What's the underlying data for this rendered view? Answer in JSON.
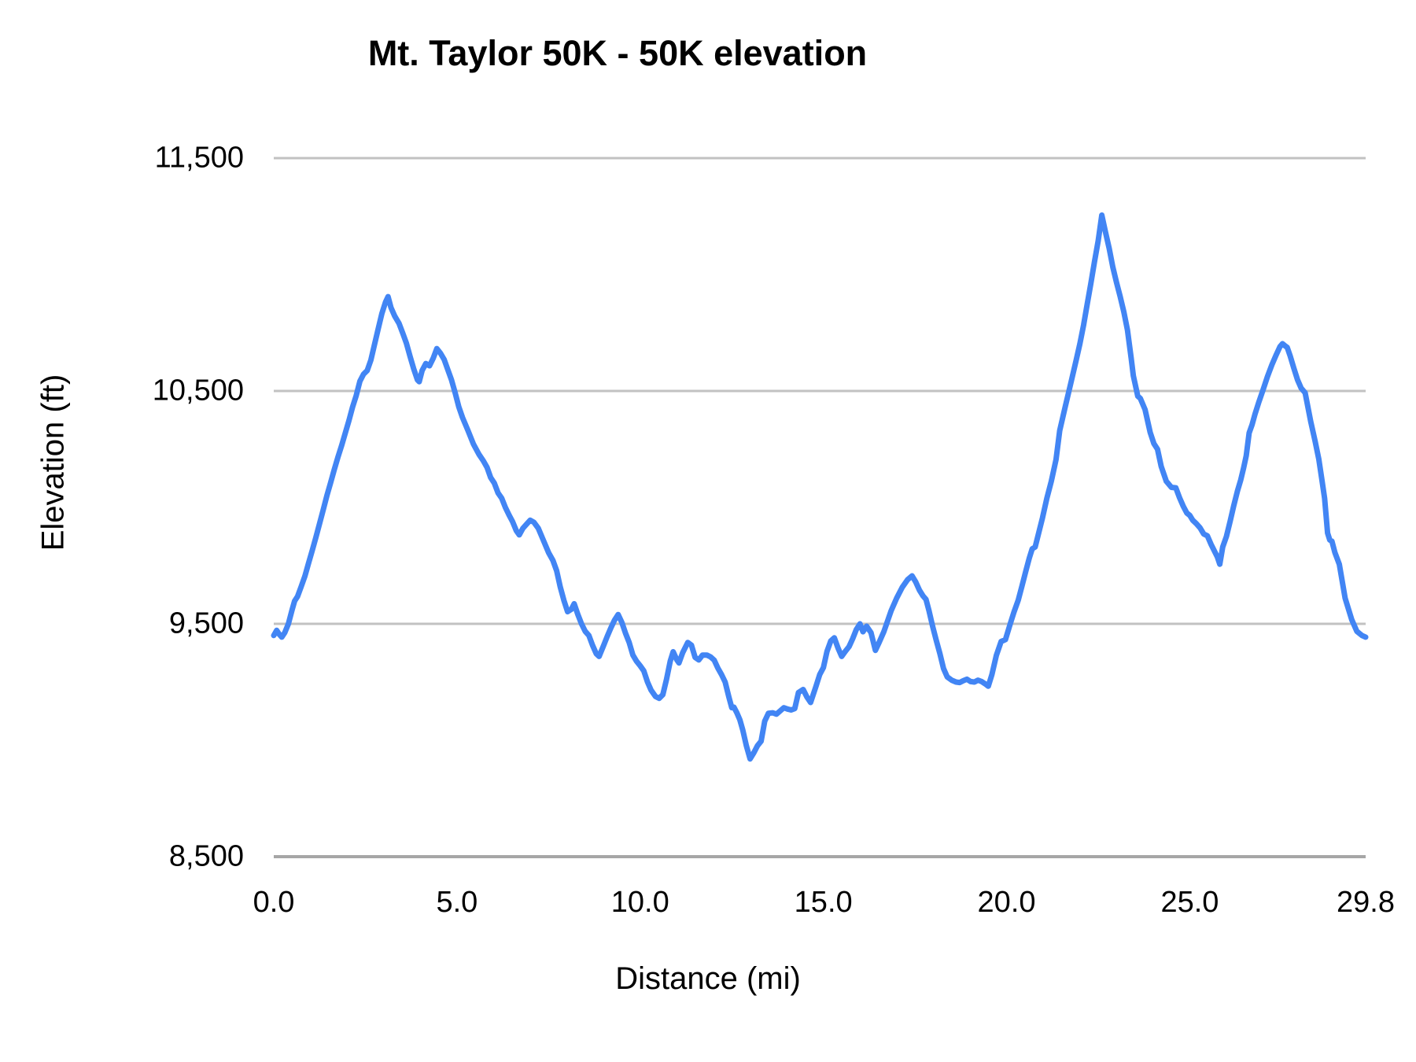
{
  "title": "Mt. Taylor 50K - 50K elevation",
  "colors": {
    "line": "#4285F4",
    "gridline": "#c2c2c2",
    "axis_baseline": "#a6a6a6",
    "text": "#000000",
    "background": "#ffffff"
  },
  "chart_data": {
    "type": "line",
    "title": "Mt. Taylor 50K - 50K elevation",
    "xlabel": "Distance (mi)",
    "ylabel": "Elevation (ft)",
    "xlim": [
      0,
      29.8
    ],
    "ylim": [
      8500,
      11500
    ],
    "grid": "horizontal-only",
    "legend": "none",
    "line_color": "#4285F4",
    "x_ticks": [
      {
        "value": 0.0,
        "label": "0.0"
      },
      {
        "value": 5.0,
        "label": "5.0"
      },
      {
        "value": 10.0,
        "label": "10.0"
      },
      {
        "value": 15.0,
        "label": "15.0"
      },
      {
        "value": 20.0,
        "label": "20.0"
      },
      {
        "value": 25.0,
        "label": "25.0"
      },
      {
        "value": 29.8,
        "label": "29.8"
      }
    ],
    "y_ticks": [
      {
        "value": 8500,
        "label": "8,500"
      },
      {
        "value": 9500,
        "label": "9,500"
      },
      {
        "value": 10500,
        "label": "10,500"
      },
      {
        "value": 11500,
        "label": "11,500"
      }
    ],
    "series": [
      {
        "name": "elevation",
        "points": [
          [
            0.0,
            9450
          ],
          [
            0.08,
            9472
          ],
          [
            0.15,
            9455
          ],
          [
            0.22,
            9443
          ],
          [
            0.3,
            9462
          ],
          [
            0.4,
            9500
          ],
          [
            0.5,
            9560
          ],
          [
            0.57,
            9598
          ],
          [
            0.65,
            9618
          ],
          [
            0.75,
            9660
          ],
          [
            0.85,
            9705
          ],
          [
            0.95,
            9760
          ],
          [
            1.05,
            9815
          ],
          [
            1.15,
            9872
          ],
          [
            1.25,
            9930
          ],
          [
            1.35,
            9990
          ],
          [
            1.45,
            10050
          ],
          [
            1.55,
            10105
          ],
          [
            1.65,
            10162
          ],
          [
            1.75,
            10215
          ],
          [
            1.85,
            10265
          ],
          [
            1.95,
            10318
          ],
          [
            2.05,
            10372
          ],
          [
            2.15,
            10430
          ],
          [
            2.25,
            10480
          ],
          [
            2.35,
            10542
          ],
          [
            2.45,
            10572
          ],
          [
            2.55,
            10588
          ],
          [
            2.65,
            10632
          ],
          [
            2.75,
            10700
          ],
          [
            2.85,
            10766
          ],
          [
            2.95,
            10832
          ],
          [
            3.05,
            10882
          ],
          [
            3.12,
            10905
          ],
          [
            3.2,
            10858
          ],
          [
            3.3,
            10822
          ],
          [
            3.42,
            10790
          ],
          [
            3.52,
            10748
          ],
          [
            3.62,
            10705
          ],
          [
            3.72,
            10648
          ],
          [
            3.82,
            10595
          ],
          [
            3.92,
            10548
          ],
          [
            3.97,
            10540
          ],
          [
            4.05,
            10588
          ],
          [
            4.15,
            10618
          ],
          [
            4.25,
            10608
          ],
          [
            4.35,
            10640
          ],
          [
            4.45,
            10682
          ],
          [
            4.55,
            10662
          ],
          [
            4.65,
            10635
          ],
          [
            4.75,
            10592
          ],
          [
            4.85,
            10548
          ],
          [
            4.95,
            10492
          ],
          [
            5.05,
            10432
          ],
          [
            5.15,
            10386
          ],
          [
            5.3,
            10330
          ],
          [
            5.45,
            10272
          ],
          [
            5.6,
            10228
          ],
          [
            5.72,
            10200
          ],
          [
            5.82,
            10172
          ],
          [
            5.92,
            10128
          ],
          [
            6.02,
            10104
          ],
          [
            6.12,
            10062
          ],
          [
            6.22,
            10040
          ],
          [
            6.32,
            10000
          ],
          [
            6.42,
            9968
          ],
          [
            6.52,
            9938
          ],
          [
            6.62,
            9900
          ],
          [
            6.7,
            9882
          ],
          [
            6.8,
            9910
          ],
          [
            6.9,
            9928
          ],
          [
            7.0,
            9945
          ],
          [
            7.1,
            9936
          ],
          [
            7.22,
            9910
          ],
          [
            7.35,
            9862
          ],
          [
            7.5,
            9806
          ],
          [
            7.62,
            9772
          ],
          [
            7.72,
            9728
          ],
          [
            7.82,
            9658
          ],
          [
            7.92,
            9600
          ],
          [
            8.02,
            9552
          ],
          [
            8.12,
            9562
          ],
          [
            8.2,
            9586
          ],
          [
            8.3,
            9540
          ],
          [
            8.4,
            9500
          ],
          [
            8.5,
            9468
          ],
          [
            8.6,
            9450
          ],
          [
            8.7,
            9408
          ],
          [
            8.8,
            9372
          ],
          [
            8.88,
            9360
          ],
          [
            9.0,
            9406
          ],
          [
            9.1,
            9446
          ],
          [
            9.2,
            9482
          ],
          [
            9.3,
            9516
          ],
          [
            9.4,
            9540
          ],
          [
            9.5,
            9506
          ],
          [
            9.6,
            9460
          ],
          [
            9.7,
            9420
          ],
          [
            9.8,
            9366
          ],
          [
            9.9,
            9340
          ],
          [
            10.0,
            9320
          ],
          [
            10.1,
            9298
          ],
          [
            10.2,
            9250
          ],
          [
            10.3,
            9215
          ],
          [
            10.42,
            9188
          ],
          [
            10.52,
            9180
          ],
          [
            10.62,
            9196
          ],
          [
            10.72,
            9262
          ],
          [
            10.82,
            9340
          ],
          [
            10.9,
            9380
          ],
          [
            11.0,
            9346
          ],
          [
            11.06,
            9332
          ],
          [
            11.16,
            9376
          ],
          [
            11.3,
            9420
          ],
          [
            11.4,
            9408
          ],
          [
            11.5,
            9356
          ],
          [
            11.6,
            9345
          ],
          [
            11.7,
            9366
          ],
          [
            11.82,
            9366
          ],
          [
            11.92,
            9358
          ],
          [
            12.02,
            9344
          ],
          [
            12.12,
            9310
          ],
          [
            12.22,
            9282
          ],
          [
            12.32,
            9250
          ],
          [
            12.42,
            9186
          ],
          [
            12.5,
            9140
          ],
          [
            12.56,
            9142
          ],
          [
            12.64,
            9118
          ],
          [
            12.72,
            9088
          ],
          [
            12.8,
            9044
          ],
          [
            12.9,
            8976
          ],
          [
            13.0,
            8920
          ],
          [
            13.1,
            8946
          ],
          [
            13.2,
            8976
          ],
          [
            13.3,
            8996
          ],
          [
            13.4,
            9082
          ],
          [
            13.5,
            9116
          ],
          [
            13.62,
            9118
          ],
          [
            13.72,
            9112
          ],
          [
            13.82,
            9126
          ],
          [
            13.92,
            9140
          ],
          [
            14.02,
            9134
          ],
          [
            14.12,
            9130
          ],
          [
            14.22,
            9136
          ],
          [
            14.32,
            9205
          ],
          [
            14.45,
            9218
          ],
          [
            14.55,
            9186
          ],
          [
            14.65,
            9162
          ],
          [
            14.8,
            9232
          ],
          [
            14.9,
            9282
          ],
          [
            15.0,
            9312
          ],
          [
            15.1,
            9382
          ],
          [
            15.2,
            9426
          ],
          [
            15.3,
            9440
          ],
          [
            15.4,
            9396
          ],
          [
            15.5,
            9360
          ],
          [
            15.6,
            9382
          ],
          [
            15.7,
            9402
          ],
          [
            15.8,
            9436
          ],
          [
            15.9,
            9476
          ],
          [
            16.0,
            9500
          ],
          [
            16.08,
            9466
          ],
          [
            16.18,
            9490
          ],
          [
            16.3,
            9462
          ],
          [
            16.42,
            9386
          ],
          [
            16.52,
            9420
          ],
          [
            16.65,
            9466
          ],
          [
            16.85,
            9556
          ],
          [
            17.0,
            9610
          ],
          [
            17.15,
            9656
          ],
          [
            17.3,
            9690
          ],
          [
            17.42,
            9706
          ],
          [
            17.52,
            9680
          ],
          [
            17.62,
            9645
          ],
          [
            17.72,
            9620
          ],
          [
            17.8,
            9605
          ],
          [
            17.88,
            9558
          ],
          [
            17.98,
            9490
          ],
          [
            18.08,
            9430
          ],
          [
            18.18,
            9372
          ],
          [
            18.28,
            9308
          ],
          [
            18.38,
            9272
          ],
          [
            18.5,
            9258
          ],
          [
            18.62,
            9250
          ],
          [
            18.72,
            9248
          ],
          [
            18.82,
            9256
          ],
          [
            18.92,
            9262
          ],
          [
            19.02,
            9252
          ],
          [
            19.12,
            9250
          ],
          [
            19.22,
            9258
          ],
          [
            19.32,
            9252
          ],
          [
            19.42,
            9242
          ],
          [
            19.5,
            9232
          ],
          [
            19.6,
            9282
          ],
          [
            19.72,
            9364
          ],
          [
            19.85,
            9424
          ],
          [
            19.97,
            9432
          ],
          [
            20.1,
            9500
          ],
          [
            20.2,
            9550
          ],
          [
            20.32,
            9602
          ],
          [
            20.42,
            9662
          ],
          [
            20.52,
            9724
          ],
          [
            20.62,
            9782
          ],
          [
            20.7,
            9822
          ],
          [
            20.78,
            9830
          ],
          [
            20.88,
            9892
          ],
          [
            20.98,
            9955
          ],
          [
            21.1,
            10040
          ],
          [
            21.22,
            10112
          ],
          [
            21.35,
            10205
          ],
          [
            21.45,
            10330
          ],
          [
            21.6,
            10432
          ],
          [
            21.75,
            10532
          ],
          [
            21.9,
            10632
          ],
          [
            22.0,
            10702
          ],
          [
            22.1,
            10782
          ],
          [
            22.2,
            10872
          ],
          [
            22.3,
            10962
          ],
          [
            22.4,
            11055
          ],
          [
            22.5,
            11145
          ],
          [
            22.6,
            11255
          ],
          [
            22.7,
            11182
          ],
          [
            22.8,
            11112
          ],
          [
            22.9,
            11032
          ],
          [
            23.0,
            10966
          ],
          [
            23.1,
            10906
          ],
          [
            23.2,
            10840
          ],
          [
            23.3,
            10762
          ],
          [
            23.4,
            10642
          ],
          [
            23.46,
            10565
          ],
          [
            23.52,
            10522
          ],
          [
            23.58,
            10478
          ],
          [
            23.65,
            10468
          ],
          [
            23.78,
            10420
          ],
          [
            23.92,
            10322
          ],
          [
            24.02,
            10274
          ],
          [
            24.12,
            10250
          ],
          [
            24.22,
            10176
          ],
          [
            24.36,
            10112
          ],
          [
            24.5,
            10086
          ],
          [
            24.62,
            10084
          ],
          [
            24.72,
            10042
          ],
          [
            24.82,
            10006
          ],
          [
            24.92,
            9976
          ],
          [
            25.0,
            9966
          ],
          [
            25.08,
            9945
          ],
          [
            25.18,
            9930
          ],
          [
            25.28,
            9912
          ],
          [
            25.38,
            9886
          ],
          [
            25.48,
            9878
          ],
          [
            25.58,
            9842
          ],
          [
            25.68,
            9810
          ],
          [
            25.75,
            9788
          ],
          [
            25.82,
            9756
          ],
          [
            25.9,
            9830
          ],
          [
            26.0,
            9875
          ],
          [
            26.1,
            9940
          ],
          [
            26.2,
            10007
          ],
          [
            26.3,
            10070
          ],
          [
            26.39,
            10118
          ],
          [
            26.47,
            10170
          ],
          [
            26.54,
            10222
          ],
          [
            26.62,
            10320
          ],
          [
            26.7,
            10355
          ],
          [
            26.78,
            10400
          ],
          [
            26.88,
            10450
          ],
          [
            27.0,
            10505
          ],
          [
            27.12,
            10562
          ],
          [
            27.24,
            10612
          ],
          [
            27.36,
            10656
          ],
          [
            27.46,
            10690
          ],
          [
            27.53,
            10703
          ],
          [
            27.6,
            10694
          ],
          [
            27.66,
            10687
          ],
          [
            27.74,
            10650
          ],
          [
            27.84,
            10598
          ],
          [
            27.94,
            10548
          ],
          [
            28.04,
            10512
          ],
          [
            28.15,
            10492
          ],
          [
            28.3,
            10370
          ],
          [
            28.42,
            10285
          ],
          [
            28.52,
            10208
          ],
          [
            28.6,
            10125
          ],
          [
            28.68,
            10040
          ],
          [
            28.76,
            9890
          ],
          [
            28.82,
            9860
          ],
          [
            28.88,
            9855
          ],
          [
            28.96,
            9806
          ],
          [
            29.08,
            9756
          ],
          [
            29.24,
            9610
          ],
          [
            29.42,
            9518
          ],
          [
            29.56,
            9468
          ],
          [
            29.7,
            9450
          ],
          [
            29.8,
            9443
          ]
        ]
      }
    ]
  }
}
